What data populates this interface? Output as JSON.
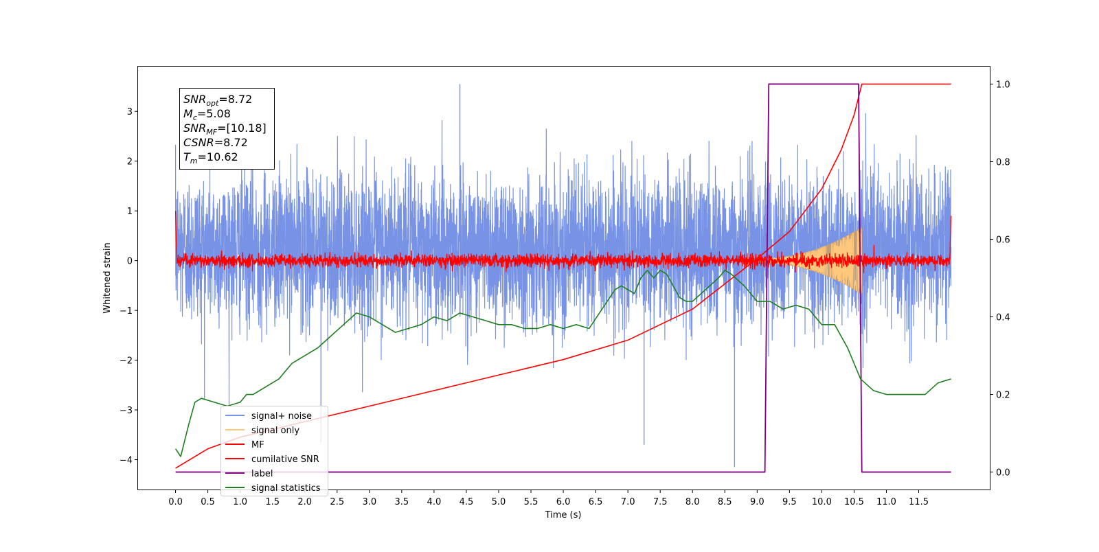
{
  "chart_data": {
    "type": "line",
    "xlabel": "Time (s)",
    "ylabel": "Whitened strain",
    "xlim": [
      -0.58,
      12.6
    ],
    "ylim": [
      -4.6,
      3.9
    ],
    "y2lim": [
      -0.045,
      1.045
    ],
    "x_ticks": [
      "0.0",
      "0.5",
      "1.0",
      "1.5",
      "2.0",
      "2.5",
      "3.0",
      "3.5",
      "4.0",
      "4.5",
      "5.0",
      "5.5",
      "6.0",
      "6.5",
      "7.0",
      "7.5",
      "8.0",
      "8.5",
      "9.0",
      "9.5",
      "10.0",
      "10.5",
      "11.0",
      "11.5"
    ],
    "y_ticks": [
      "3",
      "2",
      "1",
      "0",
      "−1",
      "−2",
      "−3",
      "−4"
    ],
    "y2_ticks": [
      "1.0",
      "0.8",
      "0.6",
      "0.4",
      "0.2",
      "0.0"
    ],
    "annotation": {
      "snr_opt": "SNR_opt=8.72",
      "mc": "M_c=5.08",
      "snr_mf": "SNR_MF=[10.18]",
      "csnr": "CSNR=8.72",
      "tm": "T_m=10.62"
    },
    "legend": {
      "position": "lower-left",
      "entries": [
        "signal+ noise",
        "signal only",
        "MF",
        "cumilative SNR",
        "label",
        "signal statistics"
      ]
    },
    "colors": {
      "signal_noise": "#7893e6",
      "signal_only": "#ffc87a",
      "signal_fill": "#c8a070",
      "mf": "#ff0000",
      "cumulative_snr": "#ff0000",
      "label": "#800080",
      "signal_statistics": "#1f7f1f"
    },
    "series": [
      {
        "name": "signal+ noise",
        "axis": "left",
        "x_range": [
          0.0,
          12.0
        ],
        "envelope_typical": [
          -1.4,
          1.9
        ],
        "notable_extremes": [
          {
            "x": 4.4,
            "y": 3.55
          },
          {
            "x": 8.65,
            "y": -4.15
          },
          {
            "x": 7.25,
            "y": -3.7
          },
          {
            "x": 2.25,
            "y": -3.65
          }
        ]
      },
      {
        "name": "signal only",
        "axis": "left",
        "x_range": [
          8.9,
          10.62
        ],
        "amplitude_end": 0.65
      },
      {
        "name": "MF",
        "axis": "left",
        "x_range": [
          0.0,
          12.0
        ],
        "baseline": 0.0,
        "amplitude": 0.15,
        "edge_spikes": [
          {
            "x": 0.0,
            "y": 1.0
          },
          {
            "x": 12.0,
            "y": 0.9
          }
        ]
      },
      {
        "name": "cumilative SNR",
        "axis": "right",
        "x": [
          0.0,
          0.5,
          1.0,
          2.0,
          3.0,
          4.0,
          5.0,
          6.0,
          7.0,
          8.0,
          9.0,
          9.5,
          10.0,
          10.3,
          10.5,
          10.62,
          12.0
        ],
        "y": [
          0.01,
          0.06,
          0.09,
          0.13,
          0.17,
          0.21,
          0.25,
          0.29,
          0.34,
          0.42,
          0.55,
          0.62,
          0.73,
          0.83,
          0.92,
          1.0,
          1.0
        ]
      },
      {
        "name": "label",
        "axis": "right",
        "x": [
          0.0,
          9.12,
          9.18,
          10.57,
          10.62,
          12.0
        ],
        "y": [
          0.0,
          0.0,
          1.0,
          1.0,
          0.0,
          0.0
        ]
      },
      {
        "name": "signal statistics",
        "axis": "right",
        "x": [
          0.0,
          0.08,
          0.2,
          0.3,
          0.4,
          0.6,
          0.8,
          1.0,
          1.1,
          1.2,
          1.4,
          1.6,
          1.8,
          2.0,
          2.2,
          2.4,
          2.6,
          2.8,
          3.0,
          3.2,
          3.4,
          3.6,
          3.8,
          4.0,
          4.2,
          4.4,
          4.6,
          4.8,
          5.0,
          5.2,
          5.4,
          5.6,
          5.8,
          6.0,
          6.2,
          6.4,
          6.6,
          6.8,
          6.9,
          7.0,
          7.1,
          7.2,
          7.3,
          7.4,
          7.5,
          7.6,
          7.7,
          7.8,
          7.9,
          8.0,
          8.2,
          8.4,
          8.5,
          8.6,
          8.8,
          8.9,
          9.0,
          9.2,
          9.4,
          9.6,
          9.8,
          10.0,
          10.2,
          10.4,
          10.6,
          10.8,
          11.0,
          11.2,
          11.4,
          11.6,
          11.8,
          12.0
        ],
        "y": [
          0.06,
          0.04,
          0.12,
          0.18,
          0.19,
          0.18,
          0.17,
          0.18,
          0.2,
          0.2,
          0.22,
          0.24,
          0.28,
          0.3,
          0.32,
          0.35,
          0.38,
          0.41,
          0.4,
          0.38,
          0.36,
          0.37,
          0.38,
          0.4,
          0.39,
          0.41,
          0.4,
          0.39,
          0.38,
          0.38,
          0.37,
          0.37,
          0.38,
          0.37,
          0.38,
          0.37,
          0.42,
          0.47,
          0.48,
          0.47,
          0.46,
          0.5,
          0.52,
          0.5,
          0.52,
          0.51,
          0.48,
          0.45,
          0.44,
          0.44,
          0.47,
          0.5,
          0.52,
          0.51,
          0.48,
          0.46,
          0.44,
          0.44,
          0.42,
          0.43,
          0.42,
          0.38,
          0.38,
          0.32,
          0.24,
          0.21,
          0.2,
          0.2,
          0.2,
          0.2,
          0.23,
          0.24
        ]
      }
    ]
  }
}
